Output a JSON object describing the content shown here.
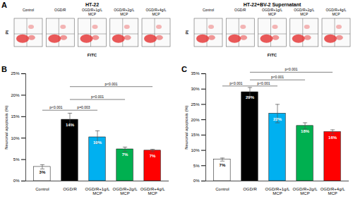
{
  "panel_a": {
    "panel": "A",
    "y_label": "PI",
    "x_label": "FITC",
    "groups": [
      {
        "title": "HT-22",
        "columns": [
          "Control",
          "OGD/R",
          "OGD/R+1g/L MCP",
          "OGD/R+2g/L MCP",
          "OGD/R+4g/L MCP"
        ]
      },
      {
        "title": "HT-22+BV-2 Supernatant",
        "columns": [
          "Control",
          "OGD/R",
          "OGD/R+1g/L MCP",
          "OGD/R+2g/L MCP",
          "OGD/R+4g/L MCP"
        ]
      }
    ]
  },
  "chart_data": [
    {
      "panel": "B",
      "type": "bar",
      "y_label": "Neuronal apoptosis (%)",
      "categories": [
        "Control",
        "OGD/R",
        "OGD/R+1g/L MCP",
        "OGD/R+2g/L MCP",
        "OGD/R+4g/L MCP"
      ],
      "values": [
        3.3,
        14.3,
        10.2,
        7.4,
        7.1
      ],
      "value_labels": [
        "3%",
        "14%",
        "10%",
        "7%",
        "7%"
      ],
      "errors": [
        0.5,
        1.5,
        1.5,
        0.5,
        0.3
      ],
      "colors": [
        "#ffffff",
        "#000000",
        "#00b0f0",
        "#00b050",
        "#ff0000"
      ],
      "data_labels": true,
      "ylim": [
        0,
        25
      ],
      "yticks": [
        {
          "value": 0,
          "label": "0%"
        },
        {
          "value": 5,
          "label": "5%"
        },
        {
          "value": 10,
          "label": "10%"
        },
        {
          "value": 15,
          "label": "15%"
        },
        {
          "value": 20,
          "label": "20%"
        },
        {
          "value": 25,
          "label": "25%"
        }
      ],
      "comparisons": [
        {
          "from": "Control",
          "to": "OGD/R",
          "label": "p<0.001",
          "y": 16.5
        },
        {
          "from": "OGD/R",
          "to": "OGD/R+1g/L MCP",
          "label": "p=0.003",
          "y": 16.5
        },
        {
          "from": "OGD/R",
          "to": "OGD/R+2g/L MCP",
          "label": "p<0.001",
          "y": 19
        },
        {
          "from": "OGD/R",
          "to": "OGD/R+4g/L MCP",
          "label": "p<0.001",
          "y": 22
        }
      ]
    },
    {
      "panel": "C",
      "type": "bar",
      "y_label": "Neuronal apoptosis (%)",
      "categories": [
        "Control",
        "OGD/R",
        "OGD/R+1g/L MCP",
        "OGD/R+2g/L MCP",
        "OGD/R+4g/L MCP"
      ],
      "values": [
        7,
        29,
        22,
        18,
        16
      ],
      "value_labels": [
        "7%",
        "29%",
        "22%",
        "18%",
        "16%"
      ],
      "errors": [
        0.5,
        1.5,
        3,
        1,
        0.7
      ],
      "colors": [
        "#ffffff",
        "#000000",
        "#00b0f0",
        "#00b050",
        "#ff0000"
      ],
      "data_labels": true,
      "ylim": [
        0,
        35
      ],
      "yticks": [
        {
          "value": 0,
          "label": "0%"
        },
        {
          "value": 5,
          "label": "5%"
        },
        {
          "value": 10,
          "label": "10%"
        },
        {
          "value": 15,
          "label": "15%"
        },
        {
          "value": 20,
          "label": "20%"
        },
        {
          "value": 25,
          "label": "25%"
        },
        {
          "value": 30,
          "label": "30%"
        },
        {
          "value": 35,
          "label": "35%"
        }
      ],
      "comparisons": [
        {
          "from": "Control",
          "to": "OGD/R",
          "label": "p<0.001",
          "y": 31
        },
        {
          "from": "OGD/R",
          "to": "OGD/R+1g/L MCP",
          "label": "p<0.001",
          "y": 31
        },
        {
          "from": "OGD/R",
          "to": "OGD/R+2g/L MCP",
          "label": "p<0.001",
          "y": 33
        },
        {
          "from": "OGD/R",
          "to": "OGD/R+4g/L MCP",
          "label": "p<0.001",
          "y": 35.5
        }
      ]
    }
  ]
}
